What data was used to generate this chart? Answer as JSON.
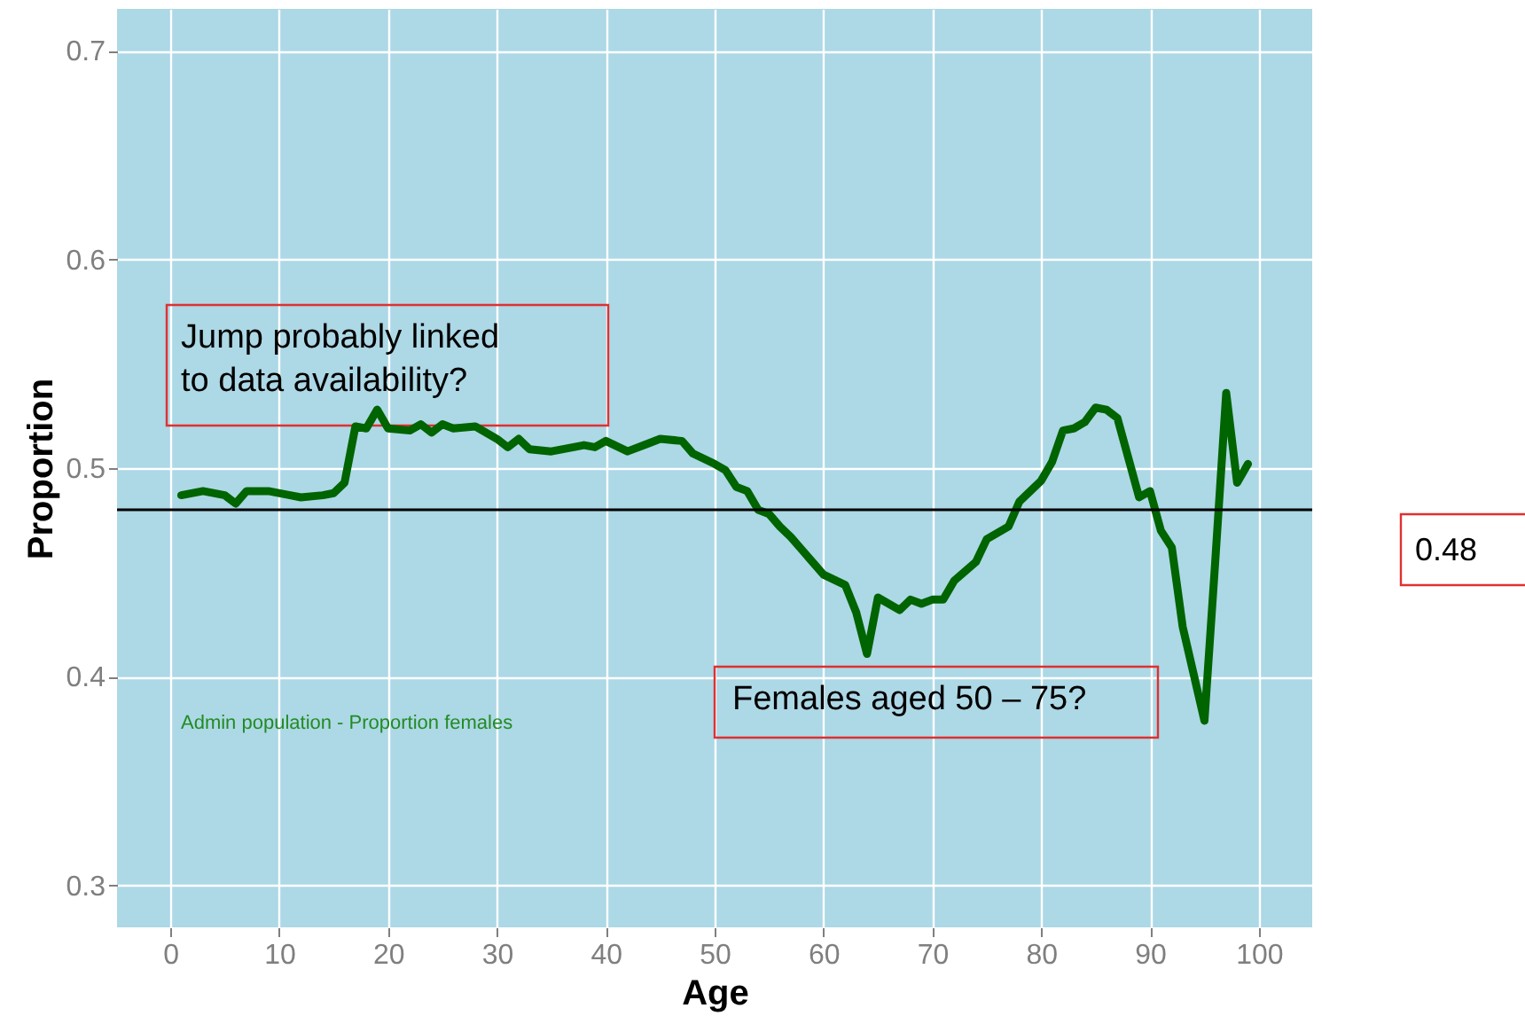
{
  "chart_data": {
    "type": "line",
    "xlabel": "Age",
    "ylabel": "Proportion",
    "xlim": [
      -4.9,
      104.9
    ],
    "ylim": [
      0.28,
      0.72
    ],
    "xticks": [
      0,
      10,
      20,
      30,
      40,
      50,
      60,
      70,
      80,
      90,
      100
    ],
    "yticks": [
      0.3,
      0.4,
      0.5,
      0.6,
      0.7
    ],
    "grid": true,
    "series": [
      {
        "color": "#006400",
        "x": [
          1,
          3,
          5,
          6,
          7,
          9,
          11,
          12,
          14,
          15,
          16,
          17,
          18,
          19,
          20,
          22,
          23,
          24,
          25,
          26,
          28,
          30,
          31,
          32,
          33,
          35,
          38,
          39,
          40,
          42,
          44,
          45,
          47,
          48,
          50,
          51,
          52,
          53,
          54,
          55,
          56,
          57,
          58,
          59,
          60,
          62,
          63,
          64,
          65,
          67,
          68,
          69,
          70,
          71,
          72,
          74,
          75,
          77,
          78,
          80,
          81,
          82,
          83,
          84,
          85,
          86,
          87,
          88,
          89,
          90,
          91,
          92,
          93,
          95,
          96,
          97,
          98,
          99
        ],
        "values": [
          0.487,
          0.489,
          0.487,
          0.483,
          0.489,
          0.489,
          0.487,
          0.486,
          0.487,
          0.488,
          0.493,
          0.52,
          0.519,
          0.528,
          0.519,
          0.518,
          0.521,
          0.517,
          0.521,
          0.519,
          0.52,
          0.514,
          0.51,
          0.514,
          0.509,
          0.508,
          0.511,
          0.51,
          0.513,
          0.508,
          0.512,
          0.514,
          0.513,
          0.507,
          0.502,
          0.499,
          0.491,
          0.489,
          0.48,
          0.478,
          0.472,
          0.467,
          0.461,
          0.455,
          0.449,
          0.444,
          0.431,
          0.411,
          0.438,
          0.432,
          0.437,
          0.435,
          0.437,
          0.437,
          0.446,
          0.455,
          0.466,
          0.472,
          0.484,
          0.494,
          0.503,
          0.518,
          0.519,
          0.522,
          0.529,
          0.528,
          0.524,
          0.505,
          0.486,
          0.489,
          0.47,
          0.462,
          0.424,
          0.379,
          0.456,
          0.536,
          0.493,
          0.502
        ]
      }
    ],
    "ref_lines": [
      {
        "axis": "y",
        "value": 0.48,
        "label": "0.48",
        "color": "#000000"
      }
    ],
    "annotations": [
      "Jump probably linked\nto data availability?",
      "Females aged 50 – 75?",
      "Admin population - Proportion females"
    ]
  }
}
